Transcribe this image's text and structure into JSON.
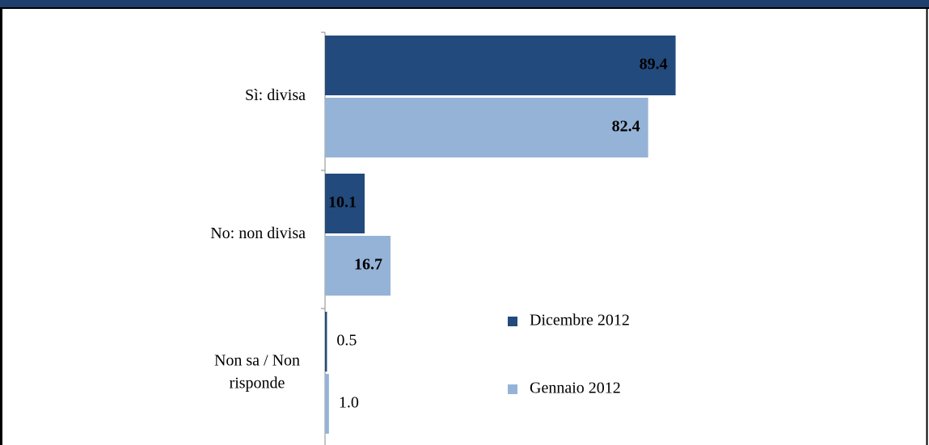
{
  "chart_data": {
    "type": "bar",
    "orientation": "horizontal",
    "categories": [
      "Sì: divisa",
      "No: non divisa",
      "Non sa / Non\nrisponde"
    ],
    "series": [
      {
        "name": "Dicembre 2012",
        "color": "#234a7c",
        "values": [
          89.4,
          10.1,
          0.5
        ],
        "value_labels": [
          "89.4",
          "10.1",
          "0.5"
        ]
      },
      {
        "name": "Gennaio 2012",
        "color": "#95b3d7",
        "values": [
          82.4,
          16.7,
          1.0
        ],
        "value_labels": [
          "82.4",
          "16.7",
          "1.0"
        ]
      }
    ],
    "xlim": [
      0,
      100
    ],
    "grid": false,
    "legend": "right"
  }
}
